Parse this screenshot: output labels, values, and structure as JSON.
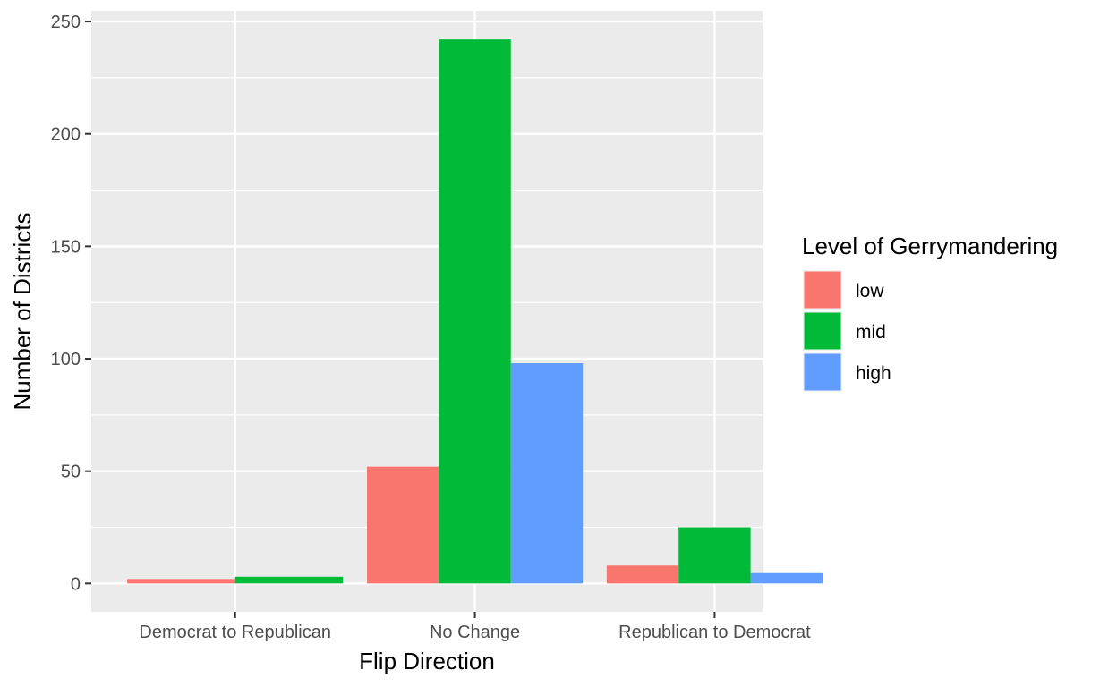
{
  "chart_data": {
    "type": "bar",
    "title": "",
    "xlabel": "Flip Direction",
    "ylabel": "Number of Districts",
    "categories": [
      "Democrat to Republican",
      "No Change",
      "Republican to Democrat"
    ],
    "series": [
      {
        "name": "low",
        "color": "#F8766D",
        "values": [
          2,
          52,
          8
        ]
      },
      {
        "name": "mid",
        "color": "#00BA38",
        "values": [
          3,
          242,
          25
        ]
      },
      {
        "name": "high",
        "color": "#619CFF",
        "values": [
          null,
          98,
          5
        ]
      }
    ],
    "ylim": [
      -12.6,
      254.8
    ],
    "yticks": [
      0,
      50,
      100,
      150,
      200,
      250
    ],
    "grid": true,
    "legend": {
      "title": "Level of Gerrymandering",
      "position": "right"
    }
  }
}
